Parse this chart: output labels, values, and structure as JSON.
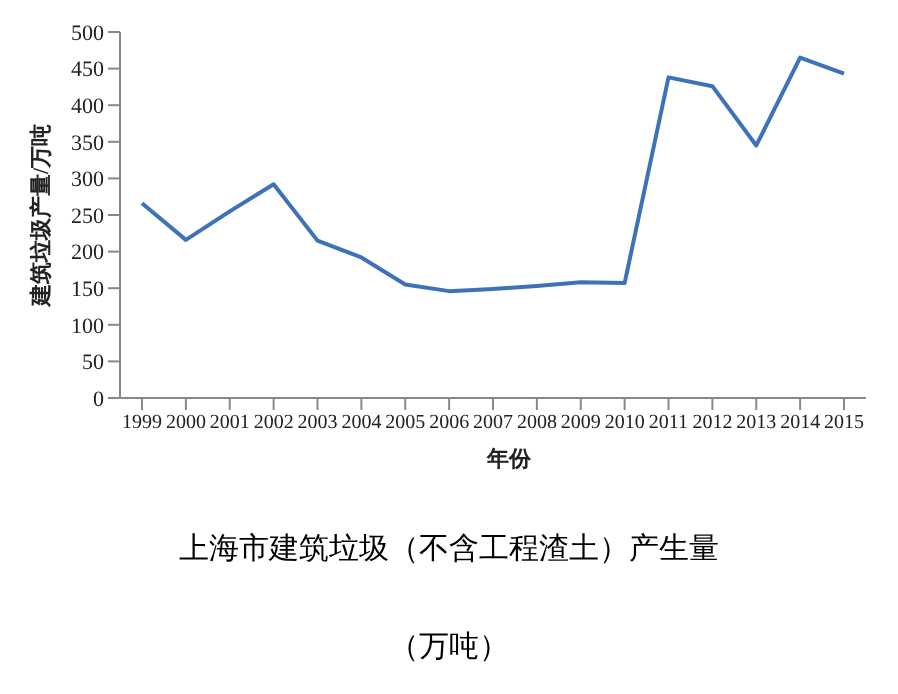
{
  "chart_data": {
    "type": "line",
    "title": "上海市建筑垃圾（不含工程渣土）产生量",
    "annotations": [
      "（万吨）"
    ],
    "xlabel": "年份",
    "ylabel": "建筑垃圾产量/万吨",
    "categories": [
      "1999",
      "2000",
      "2001",
      "2002",
      "2003",
      "2004",
      "2005",
      "2006",
      "2007",
      "2008",
      "2009",
      "2010",
      "2011",
      "2012",
      "2013",
      "2014",
      "2015"
    ],
    "series": [
      {
        "color": "#3d72b8",
        "values": [
          266,
          216,
          255,
          292,
          215,
          192,
          155,
          146,
          149,
          153,
          158,
          157,
          438,
          426,
          345,
          465,
          443
        ]
      }
    ],
    "ylim": [
      0,
      500
    ],
    "yticks": [
      0,
      50,
      100,
      150,
      200,
      250,
      300,
      350,
      400,
      450,
      500
    ],
    "grid": false,
    "legend": false,
    "marker": "none",
    "line_style": "solid"
  }
}
